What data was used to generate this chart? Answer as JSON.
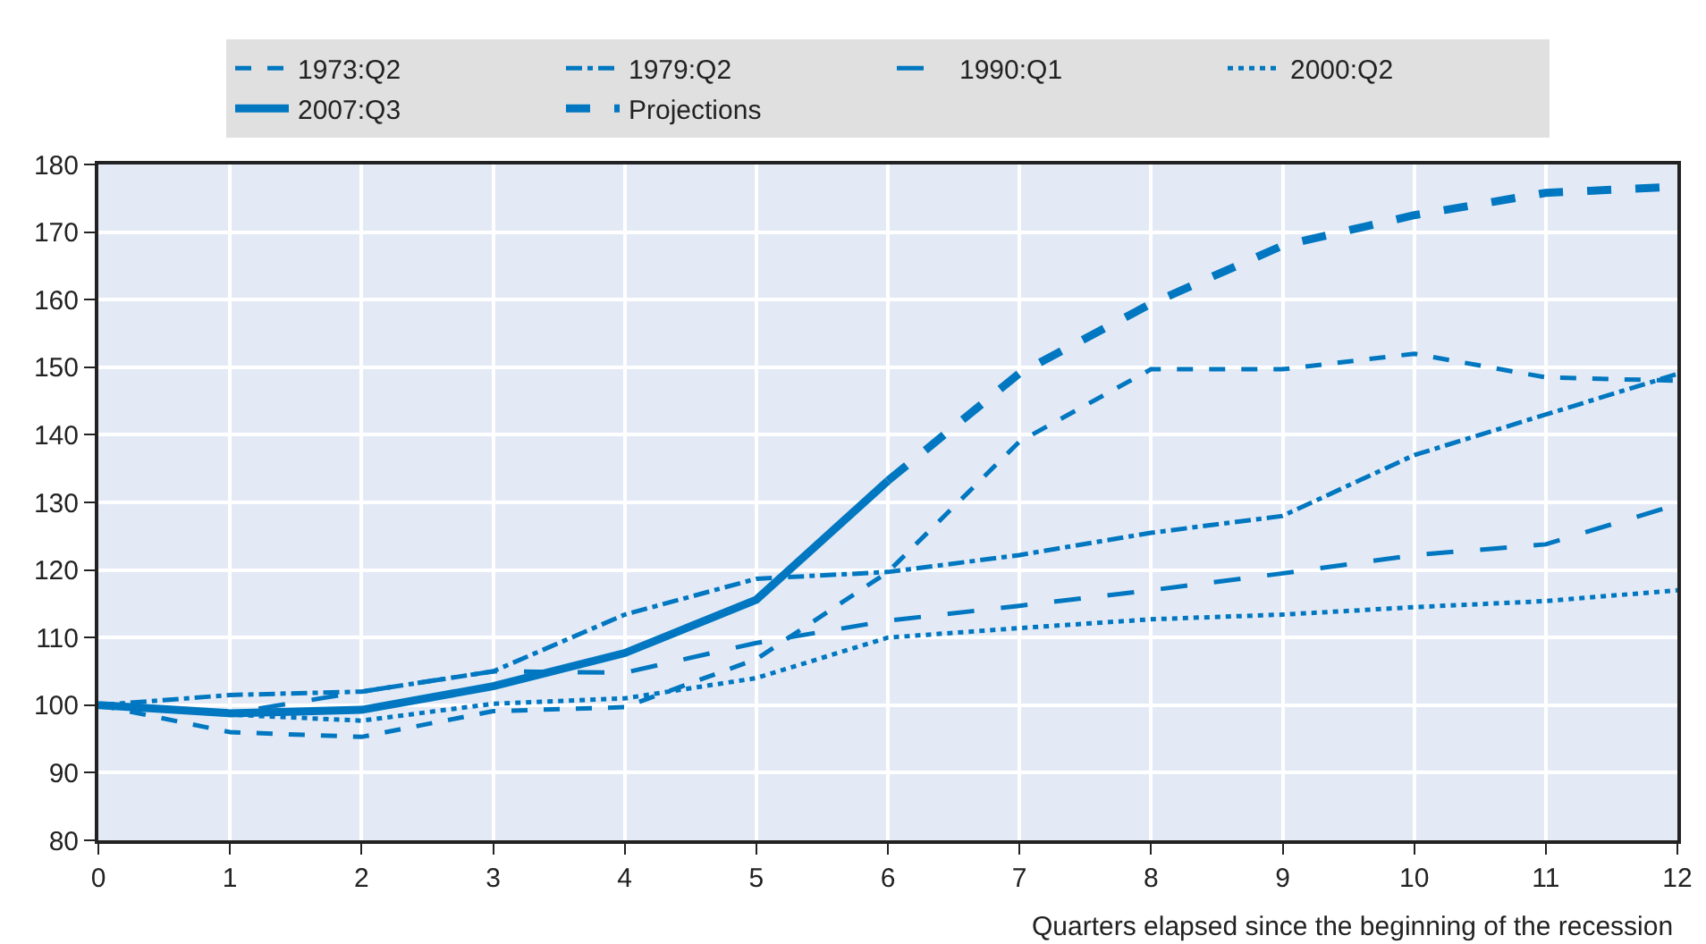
{
  "chart_data": {
    "type": "line",
    "xlabel": "Quarters elapsed since the beginning of the recession",
    "x": [
      0,
      1,
      2,
      3,
      4,
      5,
      6,
      7,
      8,
      9,
      10,
      11,
      12
    ],
    "series": [
      {
        "name": "1973:Q2",
        "color": "#0077c0",
        "line_style": "dashed",
        "values": [
          100,
          96,
          95.3,
          99.1,
          99.7,
          106.8,
          119.7,
          139,
          149.7,
          149.7,
          152,
          148.5,
          148
        ]
      },
      {
        "name": "1979:Q2",
        "color": "#0077c0",
        "line_style": "dashdot",
        "values": [
          100,
          101.5,
          102,
          105,
          113.4,
          118.7,
          119.7,
          122.2,
          125.5,
          128,
          137,
          143,
          149
        ]
      },
      {
        "name": "1990:Q1",
        "color": "#0077c0",
        "line_style": "longdash",
        "values": [
          100,
          98.8,
          102,
          105,
          104.8,
          109.2,
          112.5,
          114.7,
          117,
          119.5,
          122.2,
          123.8,
          129.7
        ]
      },
      {
        "name": "2000:Q2",
        "color": "#0077c0",
        "line_style": "dotted",
        "values": [
          100,
          98.6,
          97.7,
          100.2,
          101,
          104,
          110,
          111.4,
          112.7,
          113.4,
          114.5,
          115.4,
          117
        ]
      },
      {
        "name": "2007:Q3",
        "color": "#0077c0",
        "line_style": "solid",
        "values": [
          100,
          98.8,
          99.3,
          102.8,
          107.7,
          115.6,
          133.2,
          null,
          null,
          null,
          null,
          null,
          null
        ]
      },
      {
        "name": "Projections",
        "color": "#0077c0",
        "line_style": "dashed",
        "values": [
          null,
          null,
          null,
          null,
          null,
          null,
          133.2,
          149.1,
          159.4,
          168,
          172.5,
          175.8,
          176.7
        ]
      }
    ],
    "xlim": [
      0,
      12
    ],
    "xticks": [
      0,
      1,
      2,
      3,
      4,
      5,
      6,
      7,
      8,
      9,
      10,
      11,
      12
    ],
    "ylim": [
      80,
      180
    ],
    "yticks": [
      80,
      90,
      100,
      110,
      120,
      130,
      140,
      150,
      160,
      170,
      180
    ],
    "grid": true,
    "legend": "top",
    "marker": "none"
  }
}
